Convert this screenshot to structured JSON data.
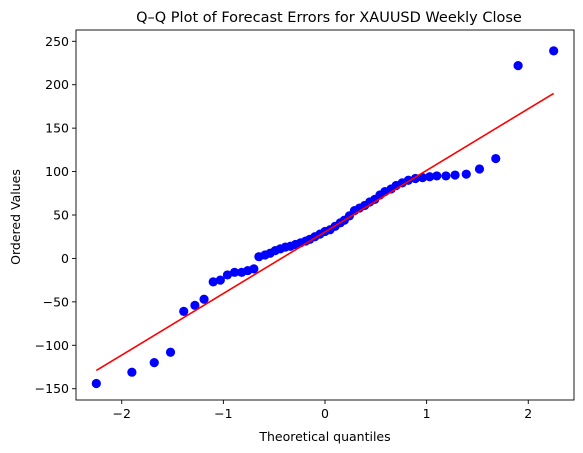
{
  "chart_data": {
    "type": "scatter",
    "title": "Q–Q Plot of Forecast Errors for XAUUSD Weekly Close",
    "xlabel": "Theoretical quantiles",
    "ylabel": "Ordered Values",
    "xlim": [
      -2.45,
      2.45
    ],
    "ylim": [
      -163,
      263
    ],
    "x_ticks": [
      -2,
      -1,
      0,
      1,
      2
    ],
    "x_tick_labels": [
      "−2",
      "−1",
      "0",
      "1",
      "2"
    ],
    "y_ticks": [
      -150,
      -100,
      -50,
      0,
      50,
      100,
      150,
      200,
      250
    ],
    "y_tick_labels": [
      "−150",
      "−100",
      "−50",
      "0",
      "50",
      "100",
      "150",
      "200",
      "250"
    ],
    "grid": false,
    "legend": "none",
    "series": [
      {
        "kind": "points",
        "color": "#0000ff",
        "x": [
          -2.25,
          -1.9,
          -1.68,
          -1.52,
          -1.39,
          -1.28,
          -1.19,
          -1.1,
          -1.03,
          -0.96,
          -0.89,
          -0.82,
          -0.76,
          -0.7,
          -0.65,
          -0.59,
          -0.54,
          -0.49,
          -0.44,
          -0.39,
          -0.34,
          -0.29,
          -0.24,
          -0.19,
          -0.15,
          -0.1,
          -0.05,
          0.0,
          0.05,
          0.1,
          0.15,
          0.19,
          0.24,
          0.29,
          0.34,
          0.39,
          0.44,
          0.49,
          0.54,
          0.59,
          0.65,
          0.7,
          0.76,
          0.82,
          0.89,
          0.96,
          1.03,
          1.1,
          1.19,
          1.28,
          1.39,
          1.52,
          1.68,
          1.9,
          2.25
        ],
        "y": [
          -144,
          -131,
          -120,
          -108,
          -61,
          -54,
          -47,
          -27,
          -25,
          -19,
          -16,
          -16,
          -14,
          -12,
          2,
          4,
          6,
          9,
          11,
          13,
          14,
          16,
          18,
          20,
          22,
          25,
          28,
          31,
          33,
          37,
          41,
          44,
          49,
          55,
          58,
          61,
          65,
          68,
          73,
          77,
          80,
          84,
          87,
          90,
          92,
          93,
          94,
          95,
          95,
          96,
          97,
          103,
          115,
          222,
          239
        ]
      },
      {
        "kind": "fit-line",
        "color": "#ff0000",
        "x": [
          -2.25,
          2.25
        ],
        "y": [
          -129,
          190
        ]
      }
    ]
  }
}
